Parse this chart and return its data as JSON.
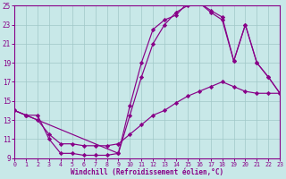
{
  "bg_color": "#c8e8e8",
  "line_color": "#880088",
  "grid_color": "#a0c8c8",
  "xlabel": "Windchill (Refroidissement éolien,°C)",
  "xlabel_color": "#880088",
  "tick_color": "#880088",
  "xmin": 0,
  "xmax": 23,
  "ymin": 9,
  "ymax": 25,
  "yticks": [
    9,
    11,
    13,
    15,
    17,
    19,
    21,
    23,
    25
  ],
  "xticks": [
    0,
    1,
    2,
    3,
    4,
    5,
    6,
    7,
    8,
    9,
    10,
    11,
    12,
    13,
    14,
    15,
    16,
    17,
    18,
    19,
    20,
    21,
    22,
    23
  ],
  "curve1_x": [
    0,
    1,
    2,
    3,
    4,
    5,
    6,
    7,
    8,
    9,
    10,
    11,
    12,
    13,
    14,
    15,
    16,
    17,
    18,
    19,
    20,
    21,
    22,
    23
  ],
  "curve1_y": [
    14.0,
    13.5,
    13.5,
    11.0,
    9.5,
    9.5,
    9.3,
    9.3,
    9.3,
    9.5,
    14.5,
    19.0,
    22.5,
    23.5,
    24.0,
    25.3,
    25.3,
    24.5,
    23.8,
    19.2,
    23.0,
    19.0,
    17.5,
    15.8
  ],
  "curve2_x": [
    0,
    1,
    2,
    3,
    4,
    5,
    6,
    7,
    8,
    9,
    10,
    11,
    12,
    13,
    14,
    15,
    16,
    17,
    18,
    19,
    20,
    21,
    22,
    23
  ],
  "curve2_y": [
    14.0,
    13.5,
    13.0,
    11.5,
    10.5,
    10.5,
    10.3,
    10.3,
    10.3,
    10.5,
    11.5,
    12.5,
    13.5,
    14.0,
    14.8,
    15.5,
    16.0,
    16.5,
    17.0,
    16.5,
    16.0,
    15.8,
    15.8,
    15.8
  ],
  "curve3_x": [
    0,
    1,
    9,
    10,
    11,
    12,
    13,
    14,
    15,
    16,
    17,
    18,
    19,
    20,
    21,
    22,
    23
  ],
  "curve3_y": [
    14.0,
    13.5,
    9.5,
    13.5,
    17.5,
    21.0,
    23.0,
    24.3,
    25.0,
    25.3,
    24.3,
    23.5,
    19.2,
    23.0,
    19.0,
    17.5,
    15.8
  ]
}
